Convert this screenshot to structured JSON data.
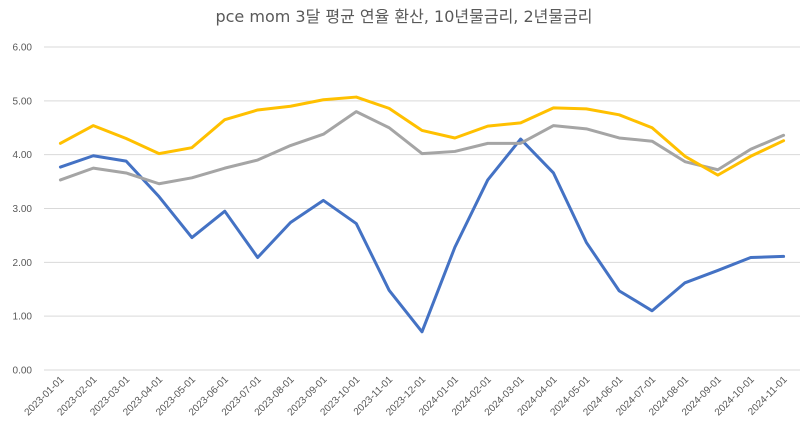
{
  "chart_data": {
    "type": "line",
    "title": "pce mom 3달 평균 연율 환산, 10년물금리, 2년물금리",
    "xlabel": "",
    "ylabel": "",
    "ylim": [
      0,
      6
    ],
    "y_ticks": [
      "0.00",
      "1.00",
      "2.00",
      "3.00",
      "4.00",
      "5.00",
      "6.00"
    ],
    "grid": true,
    "legend": "none",
    "categories": [
      "2023-01-01",
      "2023-02-01",
      "2023-03-01",
      "2023-04-01",
      "2023-05-01",
      "2023-06-01",
      "2023-07-01",
      "2023-08-01",
      "2023-09-01",
      "2023-10-01",
      "2023-11-01",
      "2023-12-01",
      "2024-01-01",
      "2024-02-01",
      "2024-03-01",
      "2024-04-01",
      "2024-05-01",
      "2024-06-01",
      "2024-07-01",
      "2024-08-01",
      "2024-09-01",
      "2024-10-01",
      "2024-11-01"
    ],
    "series": [
      {
        "name": "pce mom 3달 평균 연율 환산",
        "color": "#4472c4",
        "values": [
          3.77,
          3.98,
          3.88,
          3.22,
          2.46,
          2.95,
          2.09,
          2.74,
          3.15,
          2.72,
          1.48,
          0.71,
          2.28,
          3.53,
          4.29,
          3.66,
          2.37,
          1.47,
          1.1,
          1.62,
          1.85,
          2.09,
          2.11
        ]
      },
      {
        "name": "10년물금리",
        "color": "#a5a5a5",
        "values": [
          3.53,
          3.75,
          3.66,
          3.46,
          3.57,
          3.75,
          3.9,
          4.17,
          4.38,
          4.8,
          4.5,
          4.02,
          4.06,
          4.21,
          4.21,
          4.54,
          4.48,
          4.31,
          4.25,
          3.87,
          3.72,
          4.1,
          4.36
        ]
      },
      {
        "name": "2년물금리",
        "color": "#ffc000",
        "values": [
          4.21,
          4.54,
          4.3,
          4.02,
          4.13,
          4.65,
          4.83,
          4.9,
          5.02,
          5.07,
          4.86,
          4.45,
          4.31,
          4.53,
          4.59,
          4.87,
          4.85,
          4.74,
          4.5,
          3.97,
          3.62,
          3.97,
          4.26
        ]
      }
    ]
  }
}
